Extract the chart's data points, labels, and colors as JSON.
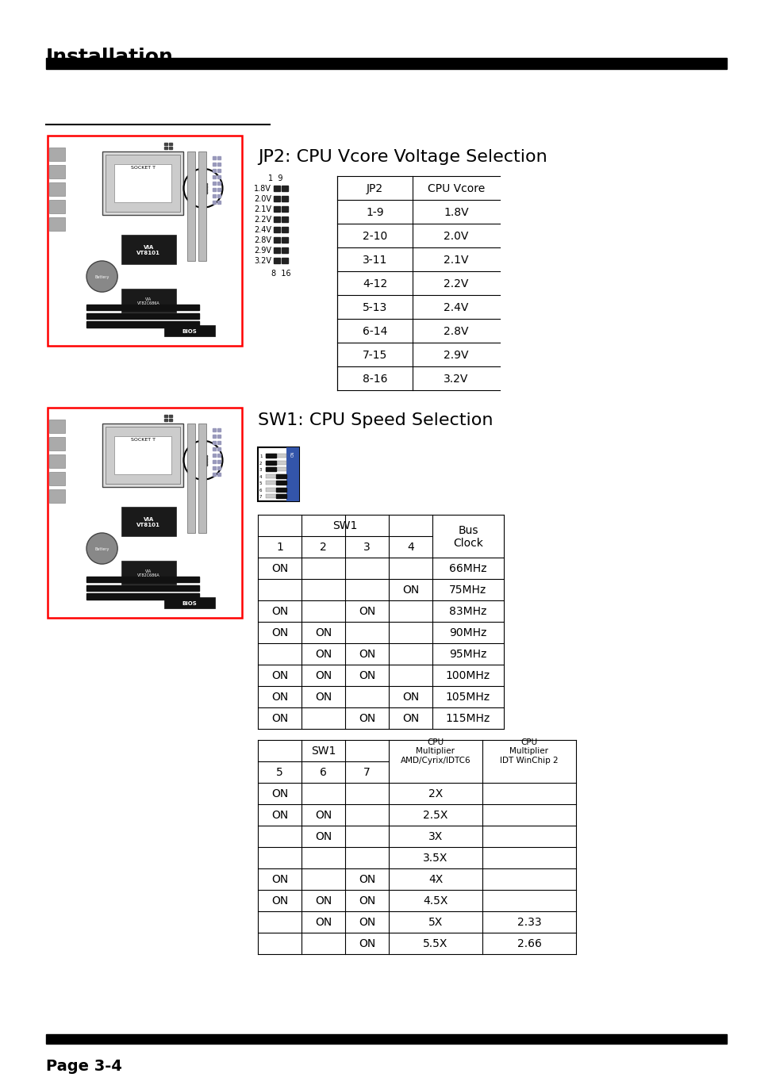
{
  "title": "Installation",
  "page_label": "Page 3-4",
  "bg_color": "#ffffff",
  "jp2_title": "JP2: CPU Vcore Voltage Selection",
  "jp2_headers": [
    "JP2",
    "CPU Vcore"
  ],
  "jp2_rows": [
    [
      "1-9",
      "1.8V"
    ],
    [
      "2-10",
      "2.0V"
    ],
    [
      "3-11",
      "2.1V"
    ],
    [
      "4-12",
      "2.2V"
    ],
    [
      "5-13",
      "2.4V"
    ],
    [
      "6-14",
      "2.8V"
    ],
    [
      "7-15",
      "2.9V"
    ],
    [
      "8-16",
      "3.2V"
    ]
  ],
  "jp2_voltage_labels": [
    "1.8V",
    "2.0V",
    "2.1V",
    "2.2V",
    "2.4V",
    "2.8V",
    "2.9V",
    "3.2V"
  ],
  "sw1_title": "SW1: CPU Speed Selection",
  "sw1_bus_rows": [
    [
      "ON",
      "",
      "",
      "",
      "66MHz"
    ],
    [
      "",
      "",
      "",
      "ON",
      "75MHz"
    ],
    [
      "ON",
      "",
      "ON",
      "",
      "83MHz"
    ],
    [
      "ON",
      "ON",
      "",
      "",
      "90MHz"
    ],
    [
      "",
      "ON",
      "ON",
      "",
      "95MHz"
    ],
    [
      "ON",
      "ON",
      "ON",
      "",
      "100MHz"
    ],
    [
      "ON",
      "ON",
      "",
      "ON",
      "105MHz"
    ],
    [
      "ON",
      "",
      "ON",
      "ON",
      "115MHz"
    ]
  ],
  "sw1_mult_rows": [
    [
      "ON",
      "",
      "",
      "2X",
      ""
    ],
    [
      "ON",
      "ON",
      "",
      "2.5X",
      ""
    ],
    [
      "",
      "ON",
      "",
      "3X",
      ""
    ],
    [
      "",
      "",
      "",
      "3.5X",
      ""
    ],
    [
      "ON",
      "",
      "ON",
      "4X",
      ""
    ],
    [
      "ON",
      "ON",
      "ON",
      "4.5X",
      ""
    ],
    [
      "",
      "ON",
      "ON",
      "5X",
      "2.33"
    ],
    [
      "",
      "",
      "ON",
      "5.5X",
      "2.66"
    ]
  ],
  "header_bar_color": "#000000",
  "title_font_size": 18,
  "section_title_font_size": 16,
  "table_font_size": 10,
  "small_font_size": 8
}
